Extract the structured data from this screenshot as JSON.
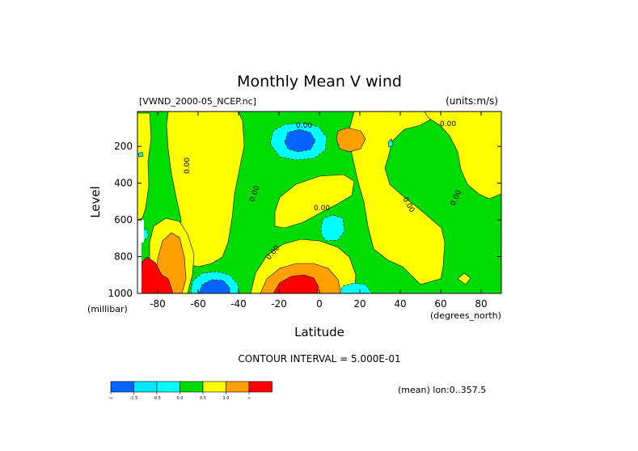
{
  "chart_data": {
    "type": "contour",
    "title": "Monthly Mean V wind",
    "dataset_label": "[VWND_2000-05_NCEP.nc]",
    "units_label": "(units:m/s)",
    "xlabel": "Latitude",
    "x_units": "(degrees_north)",
    "ylabel": "Level",
    "y_units": "(millibar)",
    "x_range": [
      -90,
      90
    ],
    "y_range": [
      1000,
      10
    ],
    "y_reversed": true,
    "x_ticks": [
      "-80",
      "-60",
      "-40",
      "-20",
      "0",
      "20",
      "40",
      "60",
      "80"
    ],
    "x_tick_values": [
      -80,
      -60,
      -40,
      -20,
      0,
      20,
      40,
      60,
      80
    ],
    "y_ticks": [
      "200",
      "400",
      "600",
      "800",
      "1000"
    ],
    "y_tick_values": [
      200,
      400,
      600,
      800,
      1000
    ],
    "contour_interval_text": "CONTOUR INTERVAL = 5.000E-01",
    "mean_text": "(mean) lon:0..357.5",
    "contour_labels": [
      "0.00",
      "0.00",
      "0.00",
      "0.00",
      "0.00",
      "0.00",
      "0.00",
      "0.00"
    ],
    "legend": {
      "placement": "bottom-left",
      "colors": [
        "#0064ff",
        "#00e6ff",
        "#00ffff",
        "#00dc00",
        "#ffff00",
        "#ffa000",
        "#ff0000"
      ],
      "labels": [
        "-∞",
        "-1.5",
        "-0.5",
        "0.0",
        "0.5",
        "1.0",
        "∞"
      ]
    },
    "fill_colors": {
      "blue": "#0064ff",
      "cyan": "#00ffff",
      "green": "#00dc00",
      "yellow": "#ffff00",
      "orange": "#ffa000",
      "red": "#ff0000"
    },
    "features": [
      {
        "name": "negative-core-upper",
        "sign": "negative",
        "lat": -12,
        "level": 170,
        "max_abs": 2.0
      },
      {
        "name": "positive-core-upper",
        "sign": "positive",
        "lat": 15,
        "level": 150,
        "max_abs": 1.0
      },
      {
        "name": "positive-core-lower",
        "sign": "positive",
        "lat": -15,
        "level": 950,
        "max_abs": 2.0
      },
      {
        "name": "negative-core-lower",
        "sign": "negative",
        "lat": -55,
        "level": 970,
        "max_abs": 2.0
      },
      {
        "name": "positive-core-south",
        "sign": "positive",
        "lat": -77,
        "level": 870,
        "max_abs": 2.5
      },
      {
        "name": "negative-core-cyan",
        "sign": "negative",
        "lat": 5,
        "level": 620,
        "max_abs": 1.0
      }
    ]
  }
}
